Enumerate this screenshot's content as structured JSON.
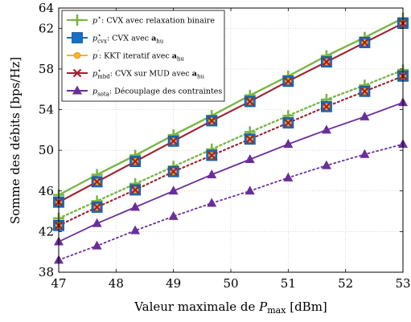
{
  "chart_data": {
    "type": "line",
    "xlabel": "Valeur maximale de P_max [dBm]",
    "ylabel": "Somme des débits [bps/Hz]",
    "xlim": [
      47,
      53
    ],
    "ylim": [
      38,
      64
    ],
    "x_ticks": [
      47,
      48,
      49,
      50,
      51,
      52,
      53
    ],
    "y_ticks": [
      38,
      42,
      46,
      50,
      54,
      58,
      62,
      64
    ],
    "grid": true,
    "legend_position": "top-left",
    "x": [
      47,
      47.667,
      48.333,
      49,
      49.667,
      50.333,
      51,
      51.667,
      52.333,
      53
    ],
    "series": [
      {
        "legend": "p*: CVX avec relaxation binaire",
        "color": "#7ab648",
        "marker": "plus",
        "line": "solid",
        "values": [
          45.6,
          47.6,
          49.5,
          51.5,
          53.4,
          55.4,
          57.3,
          59.3,
          61.1,
          63.0
        ]
      },
      {
        "legend": "p*: CVX avec relaxation binaire",
        "color": "#7ab648",
        "marker": "plus",
        "line": "dotted",
        "values": [
          43.3,
          45.0,
          46.7,
          48.4,
          50.1,
          51.8,
          53.4,
          55.0,
          56.4,
          57.9
        ]
      },
      {
        "legend": "p*_cvx: CVX avec a_hu",
        "color": "#1a6fc4",
        "marker": "square",
        "line": "solid",
        "values": [
          44.9,
          46.9,
          48.9,
          50.9,
          52.9,
          54.8,
          56.8,
          58.7,
          60.6,
          62.5
        ]
      },
      {
        "legend": "p*_cvx: CVX avec a_hu",
        "color": "#1a6fc4",
        "marker": "square",
        "line": "dotted",
        "values": [
          42.6,
          44.4,
          46.1,
          47.9,
          49.5,
          51.1,
          52.7,
          54.3,
          55.8,
          57.3
        ]
      },
      {
        "legend": "p': KKT iteratif avec a_hu",
        "color": "#f5b32a",
        "marker": "circle",
        "line": "solid",
        "values": [
          44.9,
          46.9,
          48.9,
          50.9,
          52.9,
          54.8,
          56.8,
          58.7,
          60.6,
          62.5
        ]
      },
      {
        "legend": "p': KKT iteratif avec a_hu",
        "color": "#f5b32a",
        "marker": "circle",
        "line": "dotted",
        "values": [
          42.6,
          44.4,
          46.1,
          47.9,
          49.5,
          51.1,
          52.7,
          54.3,
          55.8,
          57.3
        ]
      },
      {
        "legend": "p*_mbd: CVX sur MUD avec a_hu",
        "color": "#a3202e",
        "marker": "cross",
        "line": "solid",
        "values": [
          44.9,
          46.9,
          48.9,
          50.9,
          52.9,
          54.8,
          56.8,
          58.7,
          60.6,
          62.5
        ]
      },
      {
        "legend": "p*_mbd: CVX sur MUD avec a_hu",
        "color": "#a3202e",
        "marker": "cross",
        "line": "dotted",
        "values": [
          42.6,
          44.4,
          46.1,
          47.9,
          49.5,
          51.1,
          52.7,
          54.3,
          55.8,
          57.3
        ]
      },
      {
        "legend": "p_sota: Découplage des contraintes",
        "color": "#6a2e9a",
        "marker": "triangle",
        "line": "solid",
        "values": [
          41.0,
          42.8,
          44.4,
          46.0,
          47.6,
          49.1,
          50.6,
          52.0,
          53.3,
          54.7
        ]
      },
      {
        "legend": "p_sota: Découplage des contraintes",
        "color": "#6a2e9a",
        "marker": "triangle",
        "line": "dotted",
        "values": [
          39.2,
          40.6,
          42.1,
          43.5,
          44.8,
          46.0,
          47.3,
          48.5,
          49.6,
          50.6
        ]
      }
    ],
    "legend": [
      {
        "main": "p",
        "sup": "⋆",
        "sub": "",
        "desc": ": CVX avec relaxation binaire",
        "bold": "",
        "bold_sub": "",
        "color": "#7ab648",
        "marker": "plus"
      },
      {
        "main": "p",
        "sup": "⋆",
        "sub": "cvx",
        "desc": ": CVX avec ",
        "bold": "a",
        "bold_sub": "hu",
        "color": "#1a6fc4",
        "marker": "square"
      },
      {
        "main": "p",
        "sup": "′",
        "sub": "",
        "desc": ": KKT iteratif avec ",
        "bold": "a",
        "bold_sub": "hu",
        "color": "#f5b32a",
        "marker": "circle"
      },
      {
        "main": "p",
        "sup": "⋆",
        "sub": "mbd",
        "desc": ": CVX sur MUD avec ",
        "bold": "a",
        "bold_sub": "hu",
        "color": "#a3202e",
        "marker": "cross"
      },
      {
        "main": "p",
        "sup": "",
        "sub": "sota",
        "desc": ": Découplage des contraintes",
        "bold": "",
        "bold_sub": "",
        "color": "#6a2e9a",
        "marker": "triangle"
      }
    ]
  }
}
